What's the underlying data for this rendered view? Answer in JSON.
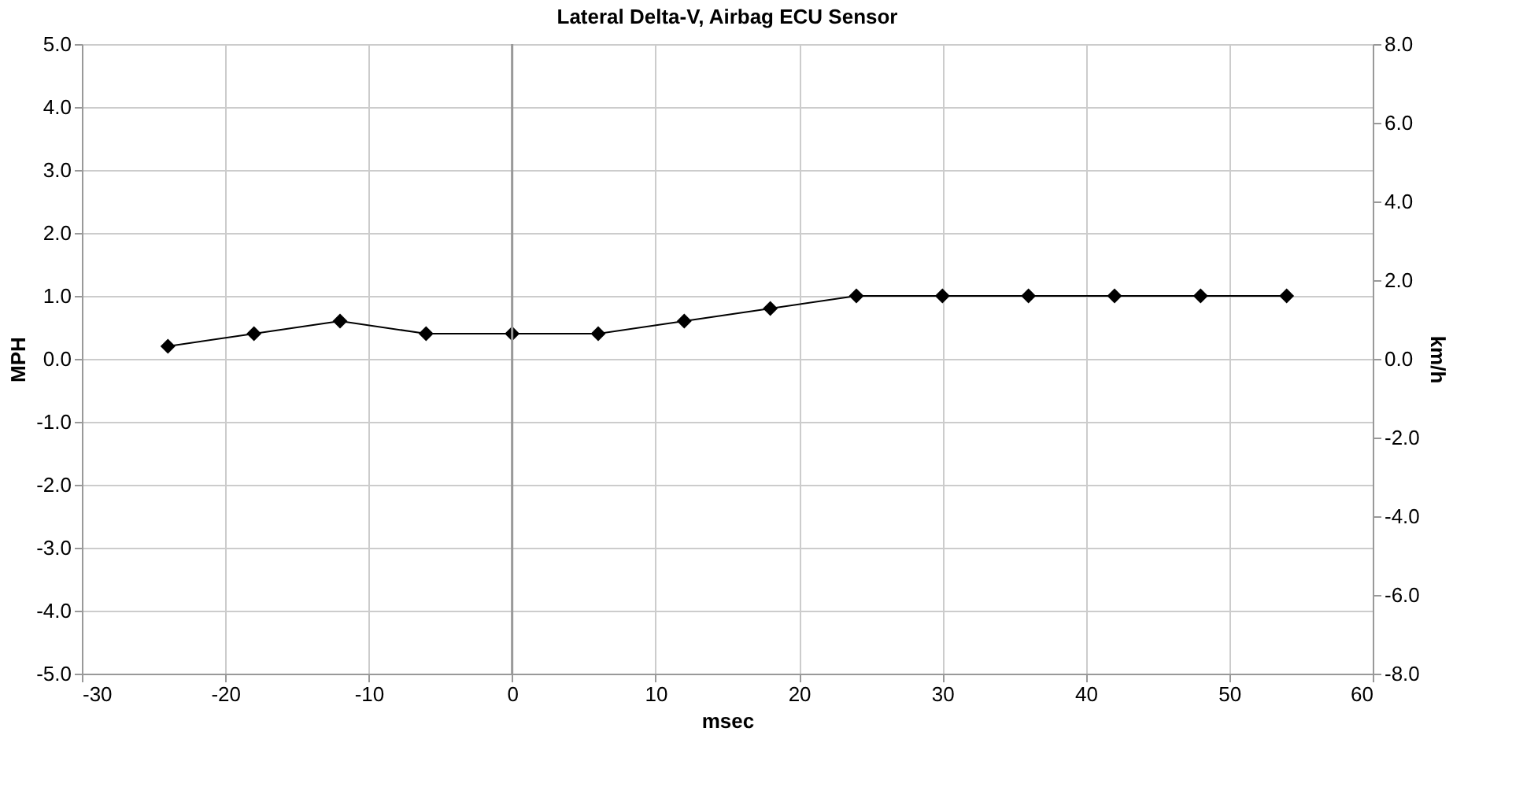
{
  "chart_data": {
    "type": "line",
    "title": "Lateral Delta-V, Airbag ECU Sensor",
    "xlabel": "msec",
    "ylabel": "MPH",
    "y2label": "km/h",
    "x": [
      -24,
      -18,
      -12,
      -6,
      0,
      6,
      12,
      18,
      24,
      30,
      36,
      42,
      48,
      54
    ],
    "series": [
      {
        "color": "#000000",
        "values": [
          0.2,
          0.4,
          0.6,
          0.4,
          0.4,
          0.4,
          0.6,
          0.8,
          1.0,
          1.0,
          1.0,
          1.0,
          1.0,
          1.0
        ]
      }
    ],
    "xlim": [
      -30,
      60
    ],
    "xticks": [
      -30,
      -20,
      -10,
      0,
      10,
      20,
      30,
      40,
      50,
      60
    ],
    "ylim": [
      -5,
      5
    ],
    "yticks": [
      {
        "value": -5,
        "label": "-5.0"
      },
      {
        "value": -4,
        "label": "-4.0"
      },
      {
        "value": -3,
        "label": "-3.0"
      },
      {
        "value": -2,
        "label": "-2.0"
      },
      {
        "value": -1,
        "label": "-1.0"
      },
      {
        "value": 0,
        "label": "0.0"
      },
      {
        "value": 1,
        "label": "1.0"
      },
      {
        "value": 2,
        "label": "2.0"
      },
      {
        "value": 3,
        "label": "3.0"
      },
      {
        "value": 4,
        "label": "4.0"
      },
      {
        "value": 5,
        "label": "5.0"
      }
    ],
    "y2lim": [
      -8,
      8
    ],
    "y2ticks": [
      {
        "value": -8,
        "label": "-8.0"
      },
      {
        "value": -6,
        "label": "-6.0"
      },
      {
        "value": -4,
        "label": "-4.0"
      },
      {
        "value": -2,
        "label": "-2.0"
      },
      {
        "value": 0,
        "label": "0.0"
      },
      {
        "value": 2,
        "label": "2.0"
      },
      {
        "value": 4,
        "label": "4.0"
      },
      {
        "value": 6,
        "label": "6.0"
      },
      {
        "value": 8,
        "label": "8.0"
      }
    ],
    "ref_lines": [
      {
        "axis": "x",
        "value": 0,
        "color": "#999999"
      }
    ],
    "grid": true,
    "marker": "diamond",
    "line_style": "solid"
  }
}
